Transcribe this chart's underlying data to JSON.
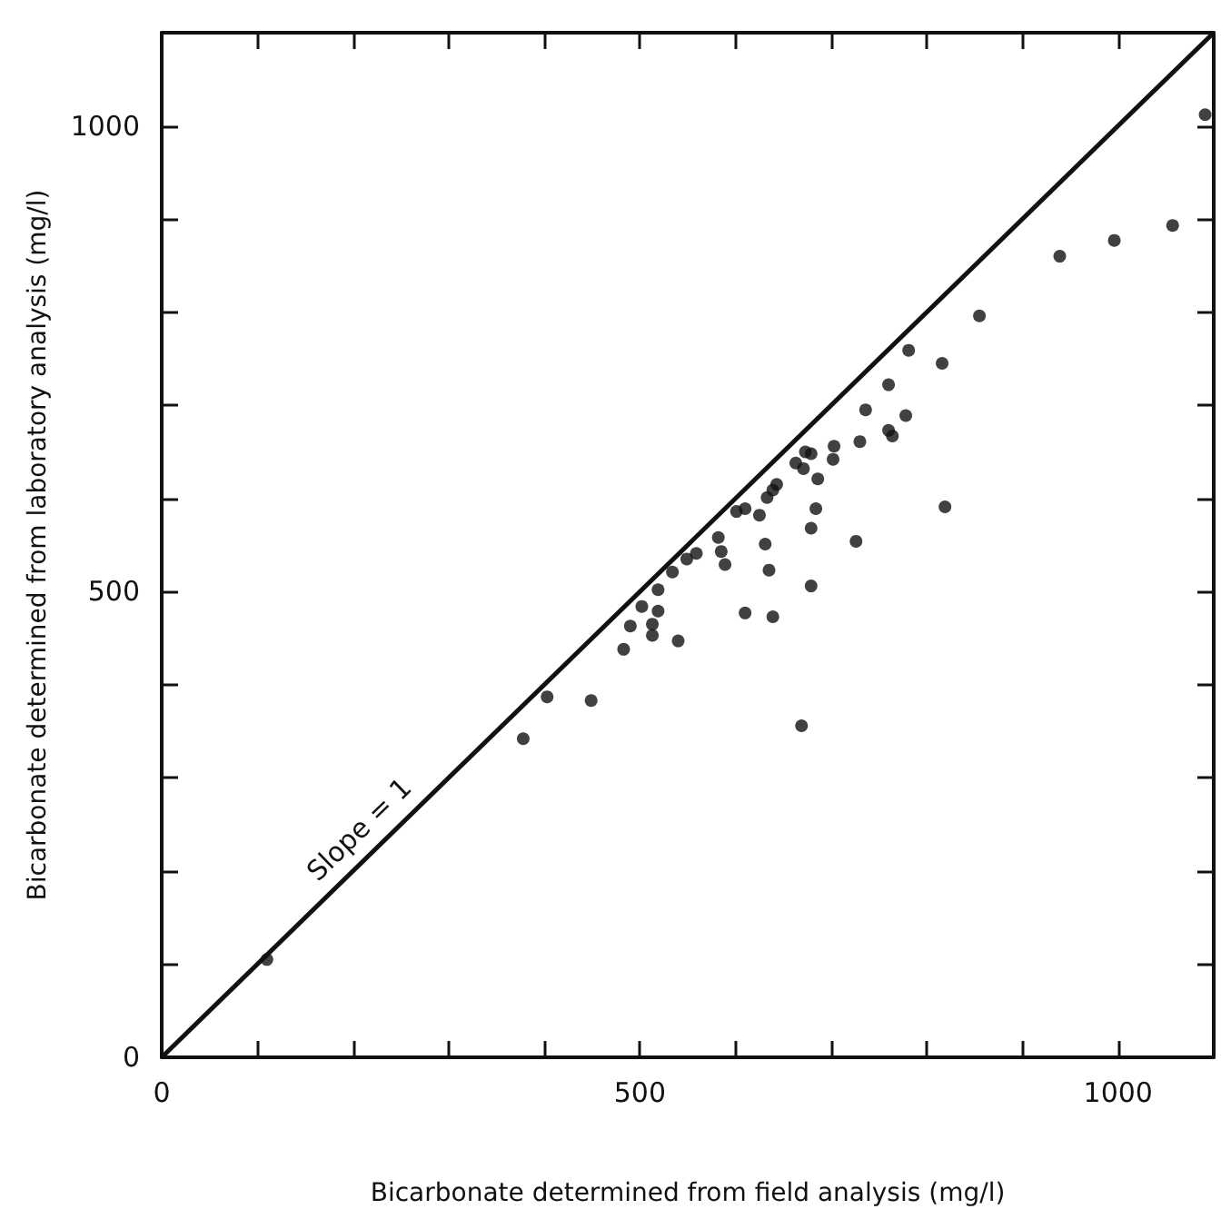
{
  "chart_data": {
    "type": "scatter",
    "xlabel": "Bicarbonate determined from field analysis (mg/l)",
    "ylabel": "Bicarbonate determined from laboratory analysis (mg/l)",
    "xlim": [
      0,
      1100
    ],
    "ylim": [
      0,
      1100
    ],
    "xticks": [
      0,
      {
        "value": 100,
        "label": null
      },
      {
        "value": 200,
        "label": null
      },
      {
        "value": 300,
        "label": null
      },
      {
        "value": 400,
        "label": null
      },
      500,
      {
        "value": 600,
        "label": null
      },
      {
        "value": 700,
        "label": null
      },
      {
        "value": 800,
        "label": null
      },
      {
        "value": 900,
        "label": null
      },
      1000
    ],
    "yticks": [
      0,
      {
        "value": 100,
        "label": null
      },
      {
        "value": 200,
        "label": null
      },
      {
        "value": 300,
        "label": null
      },
      {
        "value": 400,
        "label": null
      },
      500,
      {
        "value": 600,
        "label": null
      },
      {
        "value": 700,
        "label": null
      },
      {
        "value": 800,
        "label": null
      },
      {
        "value": 900,
        "label": null
      },
      1000
    ],
    "grid": false,
    "annotations": [
      {
        "text": "Slope = 1",
        "x": 225,
        "y": 225
      }
    ],
    "series": [
      {
        "color": "#111111",
        "marker": "circle",
        "x": [
          855,
          816,
          781,
          760,
          736,
          778,
          760,
          764,
          730,
          703,
          702,
          679,
          673,
          663,
          671,
          686,
          643,
          639,
          633,
          684,
          819,
          610,
          601,
          625,
          679,
          726,
          631,
          582,
          585,
          589,
          559,
          549,
          635,
          534,
          519,
          502,
          519,
          679,
          610,
          639,
          490,
          513,
          513,
          483,
          540,
          403,
          449,
          669,
          378,
          110,
          939,
          996,
          1057,
          1091
        ],
        "values": [
          796,
          745,
          759,
          722,
          695,
          689,
          673,
          667,
          661,
          656,
          642,
          648,
          650,
          638,
          632,
          621,
          615,
          609,
          601,
          589,
          591,
          589,
          586,
          582,
          568,
          554,
          551,
          558,
          543,
          529,
          541,
          535,
          523,
          521,
          502,
          484,
          479,
          506,
          477,
          473,
          463,
          465,
          453,
          438,
          447,
          387,
          383,
          356,
          342,
          105,
          860,
          877,
          893,
          1012
        ]
      },
      {
        "type": "line",
        "color": "#111111",
        "line_style": "solid",
        "x": [
          0,
          1100
        ],
        "values": [
          0,
          1100
        ]
      }
    ]
  }
}
